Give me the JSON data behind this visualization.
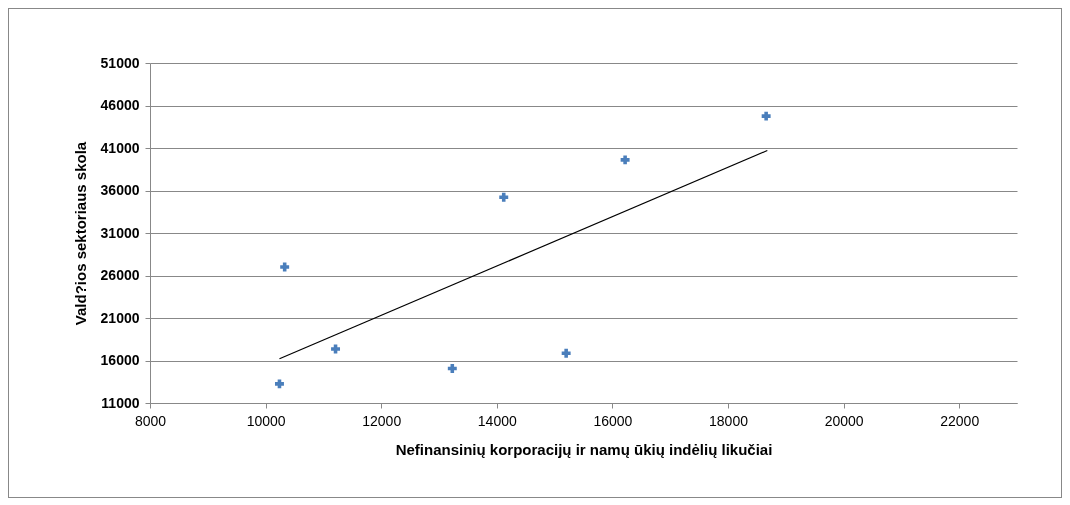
{
  "chart_data": {
    "type": "scatter",
    "xlabel": "Nefinansinių korporacijų ir namų ūkių indėlių likučiai",
    "ylabel": "Vald?ios sektoriaus  skola",
    "series": [
      {
        "color": "#4a7ebb",
        "marker": "cross",
        "x": [
          10240,
          10330,
          11210,
          13230,
          14120,
          15200,
          16220,
          18660
        ],
        "values": [
          13250,
          27000,
          17350,
          15050,
          35200,
          16850,
          39600,
          44750
        ]
      },
      {
        "type": "line",
        "color": "#000000",
        "x": [
          10240,
          18680
        ],
        "values": [
          16200,
          40700
        ]
      }
    ],
    "xlim": [
      8000,
      23000
    ],
    "xticks": [
      8000,
      10000,
      12000,
      14000,
      16000,
      18000,
      20000,
      22000
    ],
    "ylim": [
      11000,
      51000
    ],
    "yticks": [
      11000,
      16000,
      21000,
      26000,
      31000,
      36000,
      41000,
      46000,
      51000
    ],
    "grid": "y"
  }
}
